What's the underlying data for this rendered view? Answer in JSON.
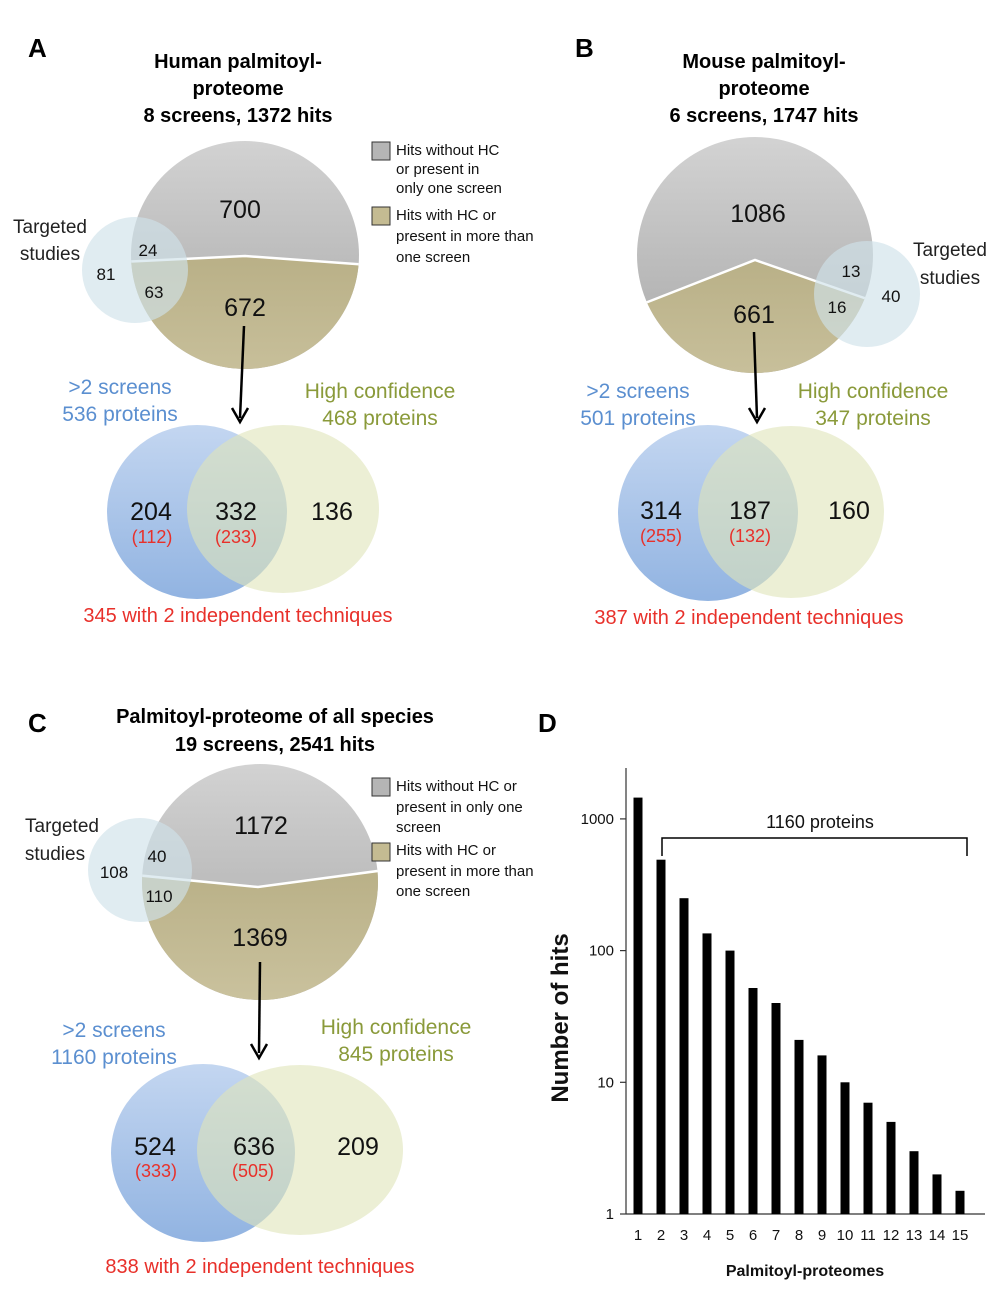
{
  "panel_a": {
    "letter": "A",
    "title_lines": [
      "Human palmitoyl-",
      "proteome",
      "8 screens, 1372 hits"
    ],
    "pie_top": "700",
    "pie_bottom": "672",
    "targeted_label_1": "Targeted",
    "targeted_label_2": "studies",
    "targeted_only": "81",
    "overlap_top": "24",
    "overlap_bottom": "63",
    "legend_gray": [
      "Hits without HC",
      "or present in",
      "only one screen"
    ],
    "legend_olive": [
      "Hits with HC or",
      "present in more than",
      "one screen"
    ],
    "screens_label_1": ">2 screens",
    "screens_label_2": "536 proteins",
    "hc_label_1": "High confidence",
    "hc_label_2": "468 proteins",
    "venn_left": "204",
    "venn_left_sub": "(112)",
    "venn_mid": "332",
    "venn_mid_sub": "(233)",
    "venn_right": "136",
    "footer": "345 with 2 independent techniques"
  },
  "panel_b": {
    "letter": "B",
    "title_lines": [
      "Mouse palmitoyl-",
      "proteome",
      "6 screens, 1747 hits"
    ],
    "pie_top": "1086",
    "pie_bottom": "661",
    "targeted_label_1": "Targeted",
    "targeted_label_2": "studies",
    "targeted_only": "40",
    "overlap_top": "13",
    "overlap_bottom": "16",
    "screens_label_1": ">2 screens",
    "screens_label_2": "501 proteins",
    "hc_label_1": "High confidence",
    "hc_label_2": "347 proteins",
    "venn_left": "314",
    "venn_left_sub": "(255)",
    "venn_mid": "187",
    "venn_mid_sub": "(132)",
    "venn_right": "160",
    "footer": "387 with 2 independent techniques"
  },
  "panel_c": {
    "letter": "C",
    "title_lines": [
      "Palmitoyl-proteome of all species",
      "19 screens, 2541 hits"
    ],
    "pie_top": "1172",
    "pie_bottom": "1369",
    "targeted_label_1": "Targeted",
    "targeted_label_2": "studies",
    "targeted_only": "108",
    "overlap_top": "40",
    "overlap_bottom": "110",
    "legend_gray": [
      "Hits without HC or",
      "present in only one",
      "screen"
    ],
    "legend_olive": [
      "Hits with HC or",
      "present in more than",
      "one screen"
    ],
    "screens_label_1": ">2 screens",
    "screens_label_2": "1160 proteins",
    "hc_label_1": "High confidence",
    "hc_label_2": "845 proteins",
    "venn_left": "524",
    "venn_left_sub": "(333)",
    "venn_mid": "636",
    "venn_mid_sub": "(505)",
    "venn_right": "209",
    "footer": "838 with 2 independent techniques"
  },
  "panel_d": {
    "letter": "D",
    "bracket_label": "1160 proteins"
  },
  "colors": {
    "gray_pie": "#b8b8b8",
    "olive_pie": "#c0b890",
    "targeted_circle": "#d6e6ee",
    "venn_blue": "#8fb3e0",
    "venn_green": "#dfe4b9",
    "text_blue": "#5b8fd0",
    "text_olive": "#8a9a3a",
    "text_red": "#e8302a"
  },
  "chart_data": {
    "type": "bar",
    "categories": [
      "1",
      "2",
      "3",
      "4",
      "5",
      "6",
      "7",
      "8",
      "9",
      "10",
      "11",
      "12",
      "13",
      "14",
      "15"
    ],
    "values": [
      1450,
      490,
      250,
      135,
      100,
      52,
      40,
      21,
      16,
      10,
      7,
      5,
      3,
      2,
      1.5
    ],
    "xlabel": "Palmitoyl-proteomes",
    "ylabel": "Number of hits",
    "yscale": "log",
    "ylim": [
      1,
      3000
    ],
    "yticks": [
      1,
      10,
      100,
      1000
    ],
    "ytick_labels": [
      "1",
      "10",
      "100",
      "1000"
    ],
    "grid": false
  }
}
